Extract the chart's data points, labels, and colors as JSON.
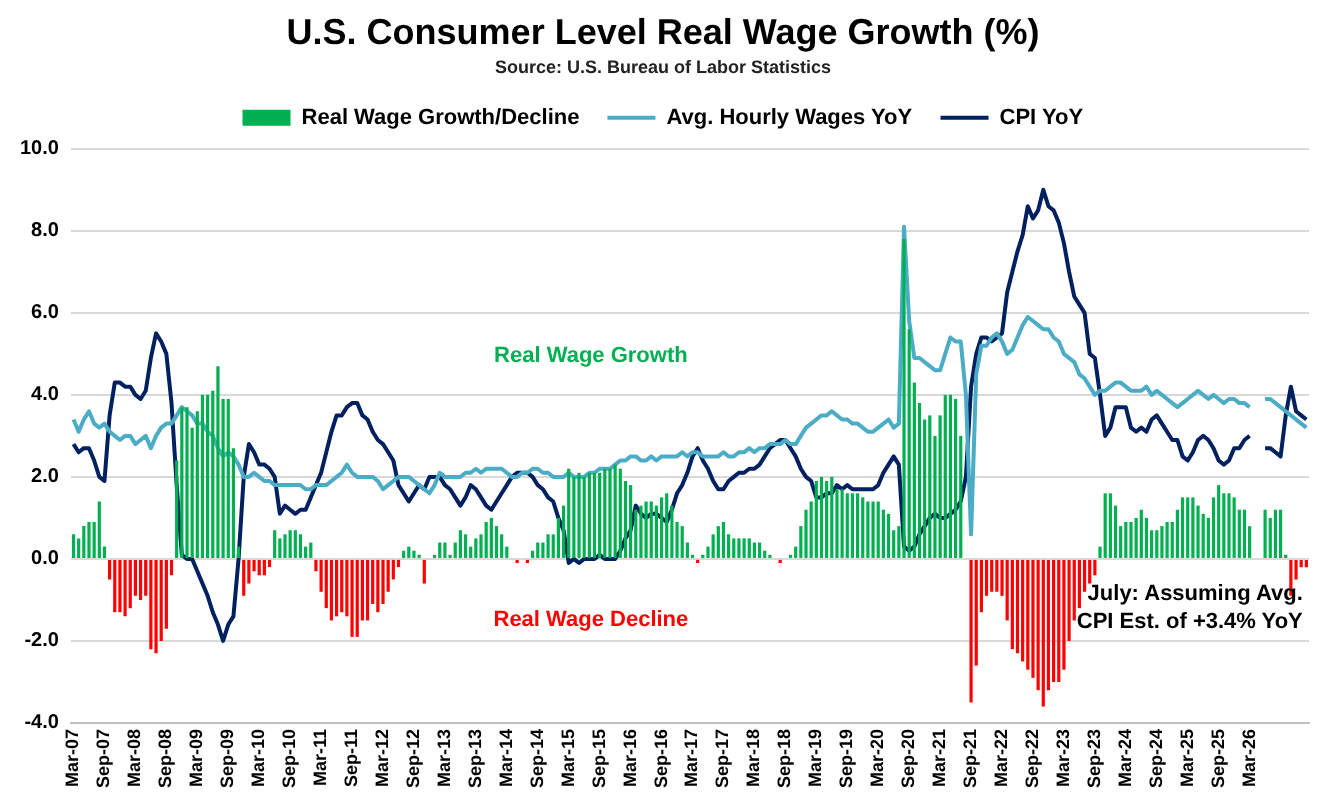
{
  "chart_data": {
    "type": "bar",
    "title": "U.S. Consumer Level Real Wage Growth (%)",
    "subtitle": "Source: U.S. Bureau of Labor Statistics",
    "categories": [
      "Mar-07",
      null,
      null,
      null,
      null,
      null,
      "Sep-07",
      null,
      null,
      null,
      null,
      null,
      "Mar-08",
      null,
      null,
      null,
      null,
      null,
      "Sep-08",
      null,
      null,
      null,
      null,
      null,
      "Mar-09",
      null,
      null,
      null,
      null,
      null,
      "Sep-09",
      null,
      null,
      null,
      null,
      null,
      "Mar-10",
      null,
      null,
      null,
      null,
      null,
      "Sep-10",
      null,
      null,
      null,
      null,
      null,
      "Mar-11",
      null,
      null,
      null,
      null,
      null,
      "Sep-11",
      null,
      null,
      null,
      null,
      null,
      "Mar-12",
      null,
      null,
      null,
      null,
      null,
      "Sep-12",
      null,
      null,
      null,
      null,
      null,
      "Mar-13",
      null,
      null,
      null,
      null,
      null,
      "Sep-13",
      null,
      null,
      null,
      null,
      null,
      "Mar-14",
      null,
      null,
      null,
      null,
      null,
      "Sep-14",
      null,
      null,
      null,
      null,
      null,
      "Mar-15",
      null,
      null,
      null,
      null,
      null,
      "Sep-15",
      null,
      null,
      null,
      null,
      null,
      "Mar-16",
      null,
      null,
      null,
      null,
      null,
      "Sep-16",
      null,
      null,
      null,
      null,
      null,
      "Mar-17",
      null,
      null,
      null,
      null,
      null,
      "Sep-17",
      null,
      null,
      null,
      null,
      null,
      "Mar-18",
      null,
      null,
      null,
      null,
      null,
      "Sep-18",
      null,
      null,
      null,
      null,
      null,
      "Mar-19",
      null,
      null,
      null,
      null,
      null,
      "Sep-19",
      null,
      null,
      null,
      null,
      null,
      "Mar-20",
      null,
      null,
      null,
      null,
      null,
      "Sep-20",
      null,
      null,
      null,
      null,
      null,
      "Mar-21",
      null,
      null,
      null,
      null,
      null,
      "Sep-21",
      null,
      null,
      null,
      null,
      null,
      "Mar-22",
      null,
      null,
      null,
      null,
      null,
      "Sep-22",
      null,
      null,
      null,
      null,
      null,
      "Mar-23",
      null,
      null,
      null,
      null,
      null,
      "Sep-23",
      null,
      null,
      null,
      null,
      null,
      "Mar-24",
      null,
      null,
      null,
      null,
      null,
      "Sep-24",
      null,
      null,
      null,
      null,
      null,
      "Mar-25",
      null,
      null,
      null,
      null,
      null,
      "Sep-25",
      null,
      null,
      null,
      null,
      null,
      "Mar-26",
      null,
      null,
      null,
      null,
      null,
      null,
      null,
      null,
      null,
      null,
      null
    ],
    "series": [
      {
        "name": "Real Wage Growth/Decline",
        "color": "#00b050",
        "values": [
          0.6,
          0.5,
          0.8,
          0.9,
          0.9,
          1.4,
          0.3,
          -0.5,
          -1.3,
          -1.3,
          -1.4,
          -1.2,
          -0.9,
          -1.0,
          -0.9,
          -2.2,
          -2.3,
          -2.0,
          -1.7,
          -0.4,
          2.4,
          3.7,
          3.7,
          3.2,
          3.6,
          4.0,
          4.0,
          4.1,
          4.7,
          3.9,
          3.9,
          2.7,
          0.3,
          -0.9,
          -0.6,
          -0.3,
          -0.4,
          -0.4,
          -0.2,
          0.7,
          0.5,
          0.6,
          0.7,
          0.7,
          0.6,
          0.3,
          0.4,
          -0.3,
          -0.8,
          -1.2,
          -1.5,
          -1.4,
          -1.3,
          -1.4,
          -1.9,
          -1.9,
          -1.5,
          -1.5,
          -1.1,
          -1.3,
          -1.1,
          -0.8,
          -0.5,
          -0.2,
          0.2,
          0.3,
          0.2,
          0.1,
          -0.6,
          0.0,
          0.1,
          0.4,
          0.4,
          0.1,
          0.4,
          0.7,
          0.6,
          0.3,
          0.5,
          0.6,
          0.9,
          1.0,
          0.8,
          0.6,
          0.3,
          0.0,
          -0.1,
          0.0,
          -0.1,
          0.2,
          0.4,
          0.4,
          0.6,
          0.6,
          1.0,
          1.3,
          2.2,
          2.0,
          2.1,
          2.0,
          2.1,
          2.1,
          2.1,
          2.2,
          2.2,
          2.3,
          2.2,
          1.9,
          1.8,
          1.2,
          1.3,
          1.4,
          1.4,
          1.3,
          1.5,
          1.6,
          1.3,
          0.9,
          0.8,
          0.4,
          0.1,
          -0.1,
          0.1,
          0.3,
          0.6,
          0.8,
          0.9,
          0.6,
          0.5,
          0.5,
          0.5,
          0.5,
          0.4,
          0.4,
          0.2,
          0.1,
          0.0,
          -0.1,
          0.0,
          0.1,
          0.3,
          0.8,
          1.2,
          1.4,
          1.9,
          2.0,
          1.9,
          2.0,
          1.7,
          1.7,
          1.6,
          1.6,
          1.6,
          1.5,
          1.4,
          1.4,
          1.4,
          1.2,
          1.1,
          0.7,
          0.8,
          7.8,
          5.6,
          4.3,
          3.8,
          3.4,
          3.5,
          3.0,
          3.5,
          4.0,
          4.0,
          3.9,
          3.0,
          0.0,
          -3.5,
          -2.6,
          -1.3,
          -0.9,
          -0.8,
          -0.8,
          -0.9,
          -1.5,
          -2.2,
          -2.3,
          -2.5,
          -2.7,
          -2.9,
          -3.2,
          -3.6,
          -3.2,
          -3.0,
          -3.0,
          -2.7,
          -2.0,
          -1.5,
          -1.2,
          -0.8,
          -0.6,
          -0.4,
          0.3,
          1.6,
          1.6,
          1.3,
          0.8,
          0.9,
          0.9,
          1.0,
          1.2,
          1.0,
          0.7,
          0.7,
          0.8,
          0.9,
          0.9,
          1.2,
          1.5,
          1.5,
          1.5,
          1.3,
          1.1,
          1.0,
          1.5,
          1.8,
          1.6,
          1.6,
          1.5,
          1.2,
          1.2,
          0.8,
          null,
          null,
          1.2,
          1.0,
          1.2,
          1.2,
          0.1,
          -0.9,
          -0.5,
          -0.2,
          -0.2
        ],
        "colors": [
          "#00b050",
          "#00b050",
          "#00b050",
          "#00b050",
          "#00b050",
          "#00b050",
          "#00b050",
          "#ff0000",
          "#ff0000",
          "#ff0000",
          "#ff0000",
          "#ff0000",
          "#ff0000",
          "#ff0000",
          "#ff0000",
          "#ff0000",
          "#ff0000",
          "#ff0000",
          "#ff0000",
          "#ff0000",
          "#00b050",
          "#00b050",
          "#00b050",
          "#00b050",
          "#00b050",
          "#00b050",
          "#00b050",
          "#00b050",
          "#00b050",
          "#00b050",
          "#00b050",
          "#00b050",
          "#00b050",
          "#ff0000",
          "#ff0000",
          "#ff0000",
          "#ff0000",
          "#ff0000",
          "#ff0000",
          "#00b050",
          "#00b050",
          "#00b050",
          "#00b050",
          "#00b050",
          "#00b050",
          "#00b050",
          "#00b050",
          "#ff0000",
          "#ff0000",
          "#ff0000",
          "#ff0000",
          "#ff0000",
          "#ff0000",
          "#ff0000",
          "#ff0000",
          "#ff0000",
          "#ff0000",
          "#ff0000",
          "#ff0000",
          "#ff0000",
          "#ff0000",
          "#ff0000",
          "#ff0000",
          "#ff0000",
          "#00b050",
          "#00b050",
          "#00b050",
          "#00b050",
          "#ff0000",
          "#00b050",
          "#00b050",
          "#00b050",
          "#00b050",
          "#00b050",
          "#00b050",
          "#00b050",
          "#00b050",
          "#00b050",
          "#00b050",
          "#00b050",
          "#00b050",
          "#00b050",
          "#00b050",
          "#00b050",
          "#00b050",
          "#00b050",
          "#ff0000",
          "#00b050",
          "#ff0000",
          "#00b050",
          "#00b050",
          "#00b050",
          "#00b050",
          "#00b050",
          "#00b050",
          "#00b050",
          "#00b050",
          "#00b050",
          "#00b050",
          "#00b050",
          "#00b050",
          "#00b050",
          "#00b050",
          "#00b050",
          "#00b050",
          "#00b050",
          "#00b050",
          "#00b050",
          "#00b050",
          "#00b050",
          "#00b050",
          "#00b050",
          "#00b050",
          "#00b050",
          "#00b050",
          "#00b050",
          "#00b050",
          "#00b050",
          "#00b050",
          "#00b050",
          "#00b050",
          "#ff0000",
          "#00b050",
          "#00b050",
          "#00b050",
          "#00b050",
          "#00b050",
          "#00b050",
          "#00b050",
          "#00b050",
          "#00b050",
          "#00b050",
          "#00b050",
          "#00b050",
          "#00b050",
          "#00b050",
          "#00b050",
          "#ff0000",
          "#00b050",
          "#00b050",
          "#00b050",
          "#00b050",
          "#00b050",
          "#00b050",
          "#00b050",
          "#00b050",
          "#00b050",
          "#00b050",
          "#00b050",
          "#00b050",
          "#00b050",
          "#00b050",
          "#00b050",
          "#00b050",
          "#00b050",
          "#00b050",
          "#00b050",
          "#00b050",
          "#00b050",
          "#00b050",
          "#00b050",
          "#00b050",
          "#00b050",
          "#00b050",
          "#00b050",
          "#00b050",
          "#00b050",
          "#00b050",
          "#00b050",
          "#00b050",
          "#00b050",
          "#00b050",
          "#00b050",
          "#00b050",
          "#ff0000",
          "#ff0000",
          "#ff0000",
          "#ff0000",
          "#ff0000",
          "#ff0000",
          "#ff0000",
          "#ff0000",
          "#ff0000",
          "#ff0000",
          "#ff0000",
          "#ff0000",
          "#ff0000",
          "#ff0000",
          "#ff0000",
          "#ff0000",
          "#ff0000",
          "#ff0000",
          "#ff0000",
          "#ff0000",
          "#ff0000",
          "#ff0000",
          "#ff0000",
          "#ff0000",
          "#ff0000",
          "#00b050",
          "#00b050",
          "#00b050",
          "#00b050",
          "#00b050",
          "#00b050",
          "#00b050",
          "#00b050",
          "#00b050",
          "#00b050",
          "#00b050",
          "#00b050",
          "#00b050",
          "#00b050",
          "#00b050",
          "#00b050",
          "#00b050",
          "#00b050",
          "#00b050",
          "#00b050",
          "#00b050",
          "#00b050",
          "#00b050",
          "#00b050",
          "#00b050",
          "#00b050",
          "#00b050",
          "#00b050",
          "#00b050",
          "#00b050",
          "#00b050",
          "#00b050",
          "#00b050",
          "#00b050",
          "#00b050",
          "#00b050",
          "#00b050",
          "#ff0000",
          "#ff0000",
          "#ff0000",
          "#ff0000"
        ]
      },
      {
        "name": "Avg. Hourly Wages YoY",
        "type": "line",
        "color": "#4bacc6",
        "values": [
          3.4,
          3.1,
          3.4,
          3.6,
          3.3,
          3.2,
          3.3,
          3.1,
          3.0,
          2.9,
          3.0,
          3.0,
          2.8,
          2.9,
          3.0,
          2.7,
          3.0,
          3.2,
          3.3,
          3.3,
          3.5,
          3.7,
          3.6,
          3.5,
          3.3,
          3.3,
          3.1,
          3.0,
          2.7,
          2.5,
          2.6,
          2.5,
          2.3,
          2.0,
          2.0,
          2.1,
          2.0,
          1.9,
          1.9,
          1.8,
          1.8,
          1.8,
          1.8,
          1.8,
          1.8,
          1.7,
          1.7,
          1.8,
          1.8,
          1.8,
          1.9,
          2.0,
          2.1,
          2.3,
          2.1,
          2.0,
          2.0,
          2.0,
          2.0,
          1.9,
          1.7,
          1.8,
          1.9,
          2.0,
          2.0,
          2.0,
          1.9,
          1.8,
          1.7,
          1.6,
          1.8,
          2.1,
          2.0,
          2.0,
          2.0,
          2.0,
          2.1,
          2.1,
          2.2,
          2.1,
          2.2,
          2.2,
          2.2,
          2.2,
          2.1,
          2.0,
          2.0,
          2.1,
          2.1,
          2.2,
          2.2,
          2.1,
          2.1,
          2.0,
          2.0,
          2.0,
          2.1,
          2.0,
          2.0,
          2.0,
          2.1,
          2.1,
          2.2,
          2.2,
          2.2,
          2.3,
          2.4,
          2.4,
          2.5,
          2.5,
          2.4,
          2.4,
          2.5,
          2.4,
          2.5,
          2.5,
          2.5,
          2.5,
          2.6,
          2.5,
          2.6,
          2.6,
          2.5,
          2.5,
          2.5,
          2.5,
          2.6,
          2.5,
          2.5,
          2.6,
          2.6,
          2.7,
          2.6,
          2.7,
          2.7,
          2.8,
          2.8,
          2.8,
          2.9,
          2.8,
          2.8,
          3.0,
          3.2,
          3.3,
          3.4,
          3.5,
          3.5,
          3.6,
          3.5,
          3.4,
          3.4,
          3.3,
          3.3,
          3.2,
          3.1,
          3.1,
          3.2,
          3.3,
          3.4,
          3.2,
          3.3,
          8.1,
          5.8,
          4.9,
          4.9,
          4.8,
          4.7,
          4.6,
          4.6,
          5.0,
          5.4,
          5.3,
          5.3,
          4.0,
          0.6,
          4.5,
          5.2,
          5.2,
          5.4,
          5.5,
          5.3,
          5.0,
          5.1,
          5.4,
          5.7,
          5.9,
          5.8,
          5.7,
          5.6,
          5.6,
          5.4,
          5.3,
          5.0,
          4.9,
          4.8,
          4.5,
          4.4,
          4.2,
          4.0,
          4.1,
          4.1,
          4.2,
          4.3,
          4.3,
          4.2,
          4.1,
          4.1,
          4.1,
          4.2,
          4.0,
          4.1,
          4.0,
          3.9,
          3.8,
          3.7,
          3.8,
          3.9,
          4.0,
          4.1,
          4.0,
          3.9,
          4.0,
          3.9,
          3.8,
          3.9,
          3.9,
          3.8,
          3.8,
          3.7,
          null,
          null,
          3.9,
          3.9,
          3.8,
          3.7,
          3.6,
          3.5,
          3.4,
          3.3,
          3.2
        ]
      },
      {
        "name": "CPI YoY",
        "type": "line",
        "color": "#002060",
        "values": [
          2.8,
          2.6,
          2.7,
          2.7,
          2.4,
          2.0,
          1.9,
          3.5,
          4.3,
          4.3,
          4.2,
          4.2,
          4.0,
          3.9,
          4.1,
          4.9,
          5.5,
          5.3,
          5.0,
          3.8,
          1.8,
          0.1,
          0.0,
          0.0,
          -0.3,
          -0.6,
          -0.9,
          -1.3,
          -1.6,
          -2.0,
          -1.6,
          -1.4,
          0.0,
          2.0,
          2.8,
          2.6,
          2.3,
          2.3,
          2.2,
          2.0,
          1.1,
          1.3,
          1.2,
          1.1,
          1.2,
          1.2,
          1.5,
          1.8,
          2.1,
          2.6,
          3.1,
          3.5,
          3.5,
          3.7,
          3.8,
          3.8,
          3.5,
          3.4,
          3.1,
          2.9,
          2.8,
          2.6,
          2.4,
          1.8,
          1.6,
          1.4,
          1.6,
          1.8,
          1.7,
          2.0,
          2.0,
          2.0,
          1.8,
          1.7,
          1.5,
          1.3,
          1.5,
          1.8,
          1.7,
          1.5,
          1.3,
          1.2,
          1.4,
          1.6,
          1.8,
          2.0,
          2.1,
          2.1,
          2.1,
          2.0,
          1.8,
          1.7,
          1.5,
          1.4,
          1.0,
          0.7,
          -0.1,
          0.0,
          -0.1,
          0.0,
          0.0,
          0.0,
          0.1,
          0.0,
          0.0,
          0.0,
          0.2,
          0.5,
          0.7,
          1.3,
          1.1,
          1.0,
          1.1,
          1.1,
          1.0,
          0.9,
          1.2,
          1.6,
          1.8,
          2.1,
          2.5,
          2.7,
          2.4,
          2.2,
          1.9,
          1.7,
          1.7,
          1.9,
          2.0,
          2.1,
          2.1,
          2.2,
          2.2,
          2.3,
          2.5,
          2.7,
          2.8,
          2.9,
          2.9,
          2.7,
          2.5,
          2.2,
          2.0,
          1.9,
          1.5,
          1.5,
          1.6,
          1.6,
          1.8,
          1.7,
          1.8,
          1.7,
          1.7,
          1.7,
          1.7,
          1.7,
          1.8,
          2.1,
          2.3,
          2.5,
          2.3,
          0.3,
          0.2,
          0.3,
          0.6,
          0.8,
          1.0,
          1.1,
          1.0,
          1.0,
          1.1,
          1.2,
          1.4,
          2.0,
          4.2,
          5.0,
          5.4,
          5.4,
          5.3,
          5.4,
          5.5,
          6.5,
          7.0,
          7.5,
          7.9,
          8.6,
          8.3,
          8.5,
          9.0,
          8.6,
          8.5,
          8.2,
          7.7,
          7.0,
          6.4,
          6.2,
          6.0,
          5.0,
          4.9,
          4.0,
          3.0,
          3.2,
          3.7,
          3.7,
          3.7,
          3.2,
          3.1,
          3.2,
          3.1,
          3.4,
          3.5,
          3.3,
          3.1,
          2.9,
          2.9,
          2.5,
          2.4,
          2.6,
          2.9,
          3.0,
          2.9,
          2.7,
          2.4,
          2.3,
          2.4,
          2.7,
          2.7,
          2.9,
          3.0,
          null,
          null,
          2.7,
          2.7,
          2.6,
          2.5,
          3.5,
          4.2,
          3.6,
          3.5,
          3.4
        ]
      }
    ],
    "ylim": [
      -4,
      10
    ],
    "yticks": [
      {
        "value": -4,
        "label": "-4.0"
      },
      {
        "value": -2,
        "label": "-2.0"
      },
      {
        "value": 0,
        "label": "0.0"
      },
      {
        "value": 2,
        "label": "2.0"
      },
      {
        "value": 4,
        "label": "4.0"
      },
      {
        "value": 6,
        "label": "6.0"
      },
      {
        "value": 8,
        "label": "8.0"
      },
      {
        "value": 10,
        "label": "10.0"
      }
    ],
    "grid": "y",
    "legend": "top",
    "marker": "none",
    "line_style": "solid",
    "annotations": [
      "Real Wage Growth",
      "Real Wage Decline",
      "July: Assuming Avg. CPI Est. of +3.4% YoY"
    ]
  }
}
